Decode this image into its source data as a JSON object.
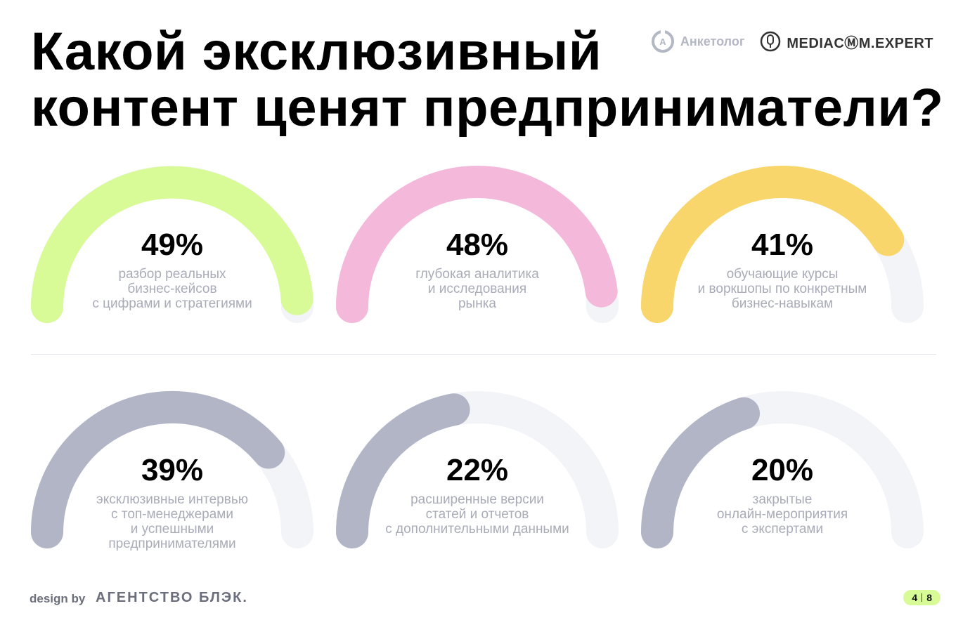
{
  "title": {
    "line1": "Какой эксклюзивный",
    "line2": "контент ценят предприниматели?"
  },
  "logos": {
    "anketolog": "Анкетолог",
    "anketolog_icon_letter": "A",
    "mediacom": "MEDIACⓂM.EXPERT"
  },
  "colors": {
    "green": "#d8fb98",
    "pink": "#f4b8da",
    "yellow": "#f9d66c",
    "grey": "#b2b5c5",
    "track": "#f3f4f8"
  },
  "chart_data": {
    "type": "gauge",
    "unit": "%",
    "max": 100,
    "items": [
      {
        "value": 49,
        "display": "49%",
        "color": "green",
        "lines": [
          "разбор реальных",
          "бизнес-кейсов",
          "с цифрами и стратегиями"
        ]
      },
      {
        "value": 48,
        "display": "48%",
        "color": "pink",
        "lines": [
          "глубокая аналитика",
          "и исследования",
          "рынка"
        ]
      },
      {
        "value": 41,
        "display": "41%",
        "color": "yellow",
        "lines": [
          "обучающие курсы",
          "и воркшопы по конкретным",
          "бизнес-навыкам"
        ]
      },
      {
        "value": 39,
        "display": "39%",
        "color": "grey",
        "lines": [
          "эксклюзивные интервью",
          "с топ-менеджерами",
          "и успешными",
          "предпринимателями"
        ]
      },
      {
        "value": 22,
        "display": "22%",
        "color": "grey",
        "lines": [
          "расширенные версии",
          "статей и отчетов",
          "с дополнительными данными"
        ]
      },
      {
        "value": 20,
        "display": "20%",
        "color": "grey",
        "lines": [
          "закрытые",
          "онлайн-мероприятия",
          "с экспертами"
        ]
      }
    ]
  },
  "footer": {
    "design_by": "design by",
    "agency": "АГЕНТСТВО БЛЭК.",
    "page_current": "4",
    "page_total": "8"
  }
}
